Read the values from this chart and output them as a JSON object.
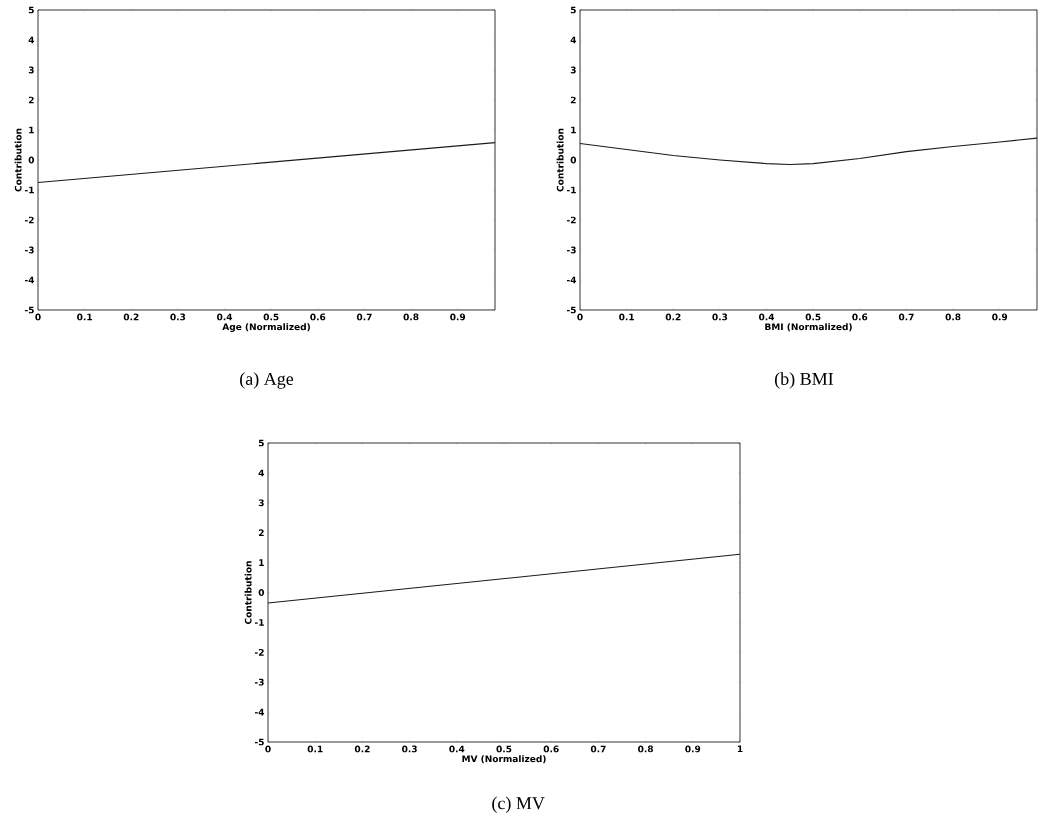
{
  "chart_data": [
    {
      "type": "line",
      "xlabel": "Age (Normalized)",
      "ylabel": "Contribution",
      "annotations": [
        "(a) Age"
      ],
      "x": [
        0,
        0.98
      ],
      "series": [
        {
          "color": "#1a1a1a",
          "values": [
            -0.75,
            0.58
          ]
        }
      ],
      "xlim": [
        0,
        0.98
      ],
      "ylim": [
        -5,
        5
      ],
      "xticks": [
        0,
        0.1,
        0.2,
        0.3,
        0.4,
        0.5,
        0.6,
        0.7,
        0.8,
        0.9
      ],
      "yticks": [
        -5,
        -4,
        -3,
        -2,
        -1,
        0,
        1,
        2,
        3,
        4,
        5
      ]
    },
    {
      "type": "line",
      "xlabel": "BMI (Normalized)",
      "ylabel": "Contribution",
      "annotations": [
        "(b) BMI"
      ],
      "x": [
        0,
        0.1,
        0.2,
        0.3,
        0.4,
        0.45,
        0.5,
        0.6,
        0.7,
        0.8,
        0.9,
        0.98
      ],
      "series": [
        {
          "color": "#1a1a1a",
          "values": [
            0.55,
            0.35,
            0.15,
            0.0,
            -0.12,
            -0.15,
            -0.12,
            0.05,
            0.28,
            0.45,
            0.6,
            0.73
          ]
        }
      ],
      "xlim": [
        0,
        0.98
      ],
      "ylim": [
        -5,
        5
      ],
      "xticks": [
        0,
        0.1,
        0.2,
        0.3,
        0.4,
        0.5,
        0.6,
        0.7,
        0.8,
        0.9
      ],
      "yticks": [
        -5,
        -4,
        -3,
        -2,
        -1,
        0,
        1,
        2,
        3,
        4,
        5
      ]
    },
    {
      "type": "line",
      "xlabel": "MV (Normalized)",
      "ylabel": "Contribution",
      "annotations": [
        "(c) MV"
      ],
      "x": [
        0,
        1
      ],
      "series": [
        {
          "color": "#1a1a1a",
          "values": [
            -0.35,
            1.28
          ]
        }
      ],
      "xlim": [
        0,
        1
      ],
      "ylim": [
        -5,
        5
      ],
      "xticks": [
        0,
        0.1,
        0.2,
        0.3,
        0.4,
        0.5,
        0.6,
        0.7,
        0.8,
        0.9,
        1
      ],
      "yticks": [
        -5,
        -4,
        -3,
        -2,
        -1,
        0,
        1,
        2,
        3,
        4,
        5
      ]
    }
  ]
}
